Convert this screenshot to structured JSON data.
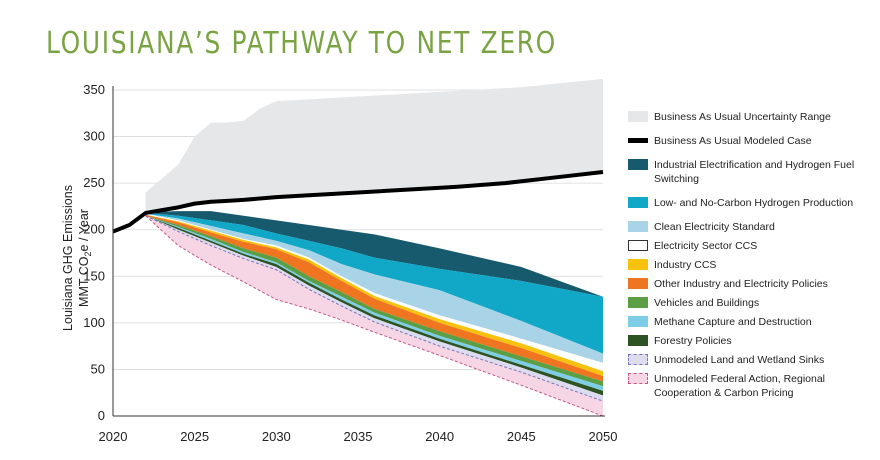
{
  "title": "LOUISIANA’S PATHWAY TO NET ZERO",
  "chart_data": {
    "type": "area",
    "title": "LOUISIANA’S PATHWAY TO NET ZERO",
    "ylabel_line1": "Louisiana GHG Emissions",
    "ylabel_line2": "MMT CO",
    "ylabel_sub": "2",
    "ylabel_tail": "e  / Year",
    "xlim": [
      2020,
      2050
    ],
    "ylim": [
      0,
      350
    ],
    "xticks": [
      2020,
      2025,
      2030,
      2035,
      2040,
      2045,
      2050
    ],
    "yticks": [
      0,
      50,
      100,
      150,
      200,
      250,
      300,
      350
    ],
    "bau_upper": {
      "x": [
        2022,
        2023,
        2024,
        2025,
        2026,
        2027,
        2028,
        2029,
        2030,
        2032,
        2035,
        2040,
        2045,
        2050
      ],
      "y": [
        240,
        255,
        270,
        300,
        315,
        315,
        317,
        330,
        338,
        340,
        343,
        348,
        353,
        362
      ]
    },
    "bau_modeled": {
      "x": [
        2020,
        2021,
        2022,
        2023,
        2024,
        2025,
        2026,
        2027,
        2028,
        2030,
        2032,
        2035,
        2041,
        2044,
        2047,
        2050
      ],
      "y": [
        198,
        205,
        218,
        221,
        224,
        228,
        230,
        231,
        232,
        235,
        237,
        240,
        246,
        250,
        256,
        262
      ]
    },
    "x": [
      2022,
      2024,
      2026,
      2028,
      2030,
      2032,
      2034,
      2036,
      2040,
      2045,
      2050
    ],
    "series": [
      {
        "name": "Industrial Electrification and Hydrogen Fuel Switching",
        "color": "#175a6d",
        "top": [
          219,
          220,
          220,
          215,
          210,
          205,
          200,
          195,
          180,
          160,
          128
        ],
        "bottom": [
          218,
          215,
          210,
          205,
          196,
          188,
          180,
          170,
          158,
          145,
          128
        ]
      },
      {
        "name": "Low- and No-Carbon Hydrogen Production",
        "color": "#11a8c8",
        "top": [
          218,
          215,
          210,
          205,
          196,
          188,
          180,
          170,
          158,
          145,
          128
        ],
        "bottom": [
          217,
          212,
          204,
          196,
          188,
          178,
          163,
          152,
          135,
          102,
          67
        ]
      },
      {
        "name": "Clean Electricity Standard",
        "color": "#a9d3e6",
        "top": [
          217,
          212,
          204,
          196,
          188,
          178,
          163,
          152,
          135,
          102,
          67
        ],
        "bottom": [
          217,
          210,
          200,
          190,
          183,
          170,
          150,
          132,
          108,
          83,
          57
        ]
      },
      {
        "name": "Electricity Sector CCS",
        "color": "#ffffff",
        "top": [
          217,
          210,
          200,
          190,
          183,
          170,
          150,
          132,
          108,
          83,
          57
        ],
        "bottom": [
          216,
          209,
          199,
          189,
          181,
          168,
          148,
          129,
          104,
          78,
          48
        ]
      },
      {
        "name": "Industry CCS",
        "color": "#f7c20e",
        "top": [
          216,
          209,
          199,
          189,
          181,
          168,
          148,
          129,
          104,
          78,
          48
        ],
        "bottom": [
          216,
          208,
          197,
          187,
          179,
          165,
          145,
          126,
          100,
          73,
          43
        ]
      },
      {
        "name": "Other Industry and Electricity Policies",
        "color": "#f07521",
        "top": [
          216,
          208,
          197,
          187,
          179,
          165,
          145,
          126,
          100,
          73,
          43
        ],
        "bottom": [
          215,
          205,
          193,
          180,
          170,
          150,
          133,
          115,
          91,
          64,
          37
        ]
      },
      {
        "name": "Vehicles and Buildings",
        "color": "#5c9e44",
        "top": [
          215,
          205,
          193,
          180,
          170,
          150,
          133,
          115,
          91,
          64,
          37
        ],
        "bottom": [
          215,
          203,
          190,
          176,
          165,
          145,
          128,
          111,
          86,
          59,
          32
        ]
      },
      {
        "name": "Methane Capture and Destruction",
        "color": "#7ecde6",
        "top": [
          215,
          203,
          190,
          176,
          165,
          145,
          128,
          111,
          86,
          59,
          32
        ],
        "bottom": [
          215,
          202,
          188,
          174,
          163,
          143,
          125,
          108,
          83,
          55,
          27
        ]
      },
      {
        "name": "Forestry Policies",
        "color": "#2d5323",
        "top": [
          215,
          202,
          188,
          174,
          163,
          143,
          125,
          108,
          83,
          55,
          27
        ],
        "bottom": [
          215,
          200,
          186,
          172,
          160,
          140,
          122,
          105,
          80,
          52,
          22
        ]
      },
      {
        "name": "Unmodeled Land and Wetland Sinks",
        "color": "#dcdcee",
        "top": [
          215,
          200,
          186,
          172,
          160,
          140,
          122,
          105,
          80,
          52,
          22
        ],
        "bottom": [
          215,
          198,
          183,
          169,
          157,
          136,
          118,
          101,
          75,
          47,
          16
        ]
      },
      {
        "name": "Unmodeled Federal Action, Regional Cooperation & Carbon Pricing",
        "color": "#f6d6e4",
        "top": [
          215,
          198,
          183,
          169,
          157,
          136,
          118,
          101,
          75,
          47,
          16
        ],
        "bottom": [
          215,
          183,
          162,
          144,
          125,
          115,
          103,
          90,
          65,
          33,
          0
        ]
      }
    ]
  },
  "legend": [
    {
      "label": "Business As Usual Uncertainty Range",
      "color": "#e6e7e8",
      "style": "fill"
    },
    {
      "label": "Business As Usual Modeled Case",
      "color": "#000000",
      "style": "line"
    },
    {
      "label": "Industrial Electrification and Hydrogen Fuel Switching",
      "color": "#175a6d",
      "style": "fill"
    },
    {
      "label": "Low- and No-Carbon Hydrogen Production",
      "color": "#11a8c8",
      "style": "fill"
    },
    {
      "label": "Clean Electricity Standard",
      "color": "#a9d3e6",
      "style": "fill"
    },
    {
      "label": "Electricity Sector CCS",
      "color": "#ffffff",
      "style": "outline"
    },
    {
      "label": "Industry CCS",
      "color": "#f7c20e",
      "style": "fill"
    },
    {
      "label": "Other Industry and Electricity Policies",
      "color": "#f07521",
      "style": "fill"
    },
    {
      "label": "Vehicles and Buildings",
      "color": "#5c9e44",
      "style": "fill"
    },
    {
      "label": "Methane Capture and Destruction",
      "color": "#7ecde6",
      "style": "fill"
    },
    {
      "label": "Forestry Policies",
      "color": "#2d5323",
      "style": "fill"
    },
    {
      "label": "Unmodeled Land and Wetland Sinks",
      "color": "#dcdcee",
      "style": "dashed",
      "border": "#7a74b8"
    },
    {
      "label": "Unmodeled Federal Action, Regional Cooperation & Carbon Pricing",
      "color": "#f6d6e4",
      "style": "dashed",
      "border": "#c0588a"
    }
  ]
}
